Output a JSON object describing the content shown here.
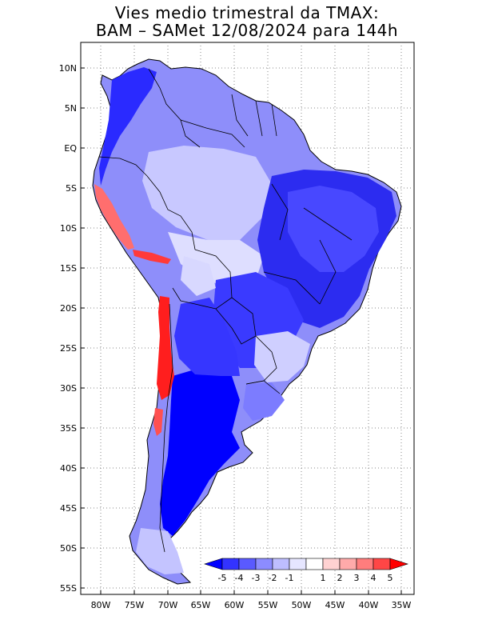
{
  "title": {
    "line1": "Vies medio trimestral da TMAX:",
    "line2": "BAM – SAMet 12/08/2024  para 144h"
  },
  "axes": {
    "lat_ticks": [
      "10N",
      "5N",
      "EQ",
      "5S",
      "10S",
      "15S",
      "20S",
      "25S",
      "30S",
      "35S",
      "40S",
      "45S",
      "50S",
      "55S"
    ],
    "lon_ticks": [
      "80W",
      "75W",
      "70W",
      "65W",
      "60W",
      "55W",
      "50W",
      "45W",
      "40W",
      "35W"
    ],
    "lat_range": [
      -56,
      13
    ],
    "lon_range": [
      -83,
      -34
    ],
    "grid": "dotted"
  },
  "colorbar": {
    "labels": [
      "-5",
      "-4",
      "-3",
      "-2",
      "-1",
      "1",
      "2",
      "3",
      "4",
      "5"
    ],
    "colors": [
      "#0000ff",
      "#3333ff",
      "#5a5aff",
      "#8c8cff",
      "#bebeff",
      "#e6e6ff",
      "#ffffff",
      "#ffd2d2",
      "#ffaaaa",
      "#ff7d7d",
      "#ff4646",
      "#ff0000"
    ]
  }
}
